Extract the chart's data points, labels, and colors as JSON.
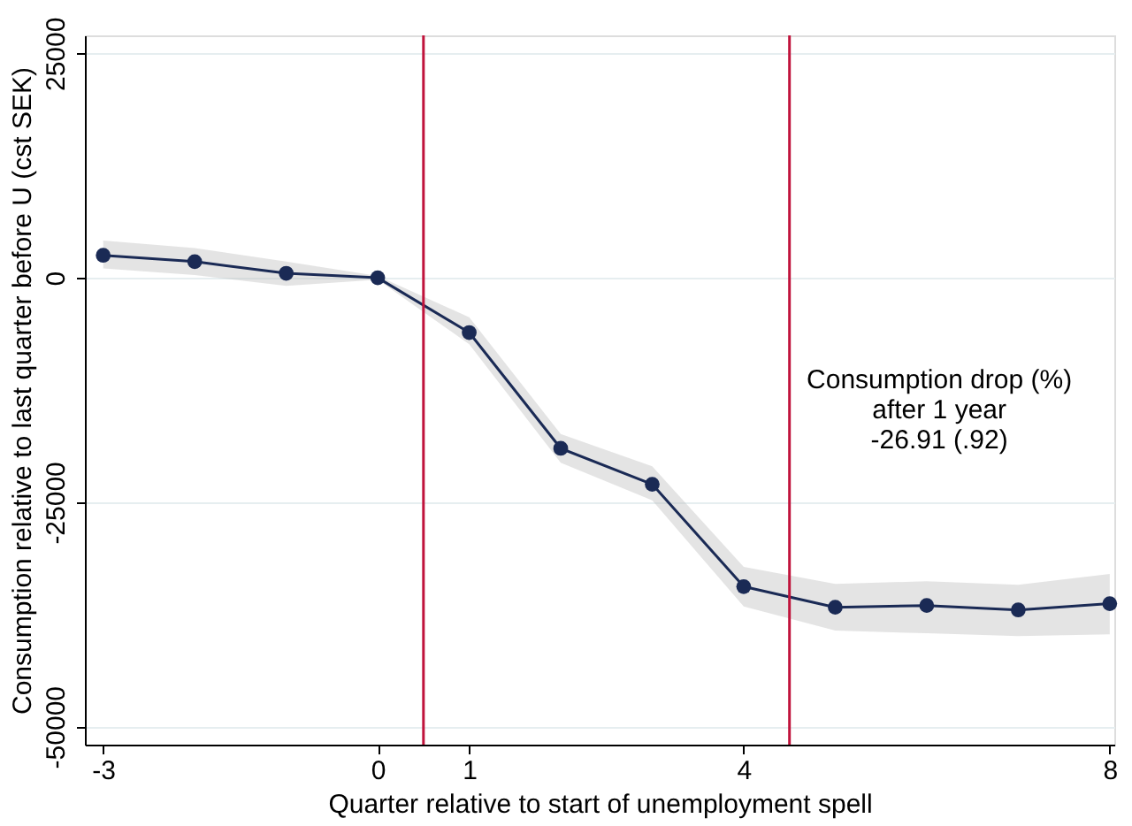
{
  "chart_data": {
    "type": "line",
    "xlabel": "Quarter relative to start of unemployment spell",
    "ylabel": "Consumption relative to last quarter before U (cst SEK)",
    "x": [
      -3,
      -2,
      -1,
      0,
      1,
      2,
      3,
      4,
      5,
      6,
      7,
      8
    ],
    "series": [
      {
        "color": "#1a2a55",
        "values": [
          2500,
          1800,
          500,
          0,
          -6100,
          -19000,
          -23000,
          -34400,
          -36700,
          -36500,
          -37000,
          -36300
        ],
        "lower": [
          1050,
          300,
          -900,
          -200,
          -7400,
          -20600,
          -24800,
          -36600,
          -39300,
          -39600,
          -39900,
          -39700
        ],
        "upper": [
          4150,
          3300,
          1800,
          200,
          -4400,
          -17400,
          -21000,
          -32200,
          -34100,
          -33800,
          -34200,
          -33000
        ]
      }
    ],
    "xlim": [
      -3.2,
      8.05
    ],
    "xticks": [
      -3,
      0,
      1,
      4,
      8
    ],
    "ylim": [
      -52000,
      27000
    ],
    "yticks": [
      -50000,
      -25000,
      0,
      25000
    ],
    "ref_lines": [
      {
        "axis": "x",
        "value": 0.5,
        "color": "#c0143c"
      },
      {
        "axis": "x",
        "value": 4.5,
        "color": "#c0143c"
      }
    ],
    "annotations": [
      "Consumption drop (%)\nafter 1 year\n-26.91 (.92)"
    ],
    "grid": "y",
    "marker": "circle",
    "line_style": "solid"
  }
}
